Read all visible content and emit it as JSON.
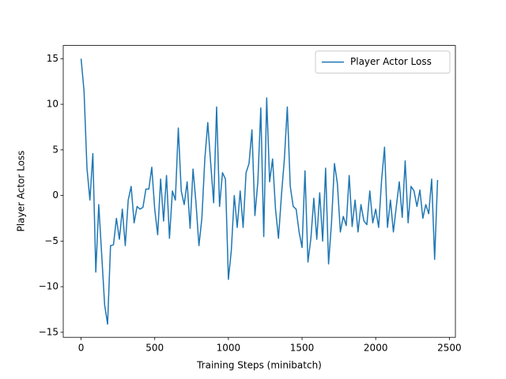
{
  "chart_data": {
    "type": "line",
    "xlabel": "Training Steps (minibatch)",
    "ylabel": "Player Actor Loss",
    "x": [
      0,
      20,
      40,
      60,
      80,
      100,
      120,
      140,
      160,
      180,
      200,
      220,
      240,
      260,
      280,
      300,
      320,
      340,
      360,
      380,
      400,
      420,
      440,
      460,
      480,
      500,
      520,
      540,
      560,
      580,
      600,
      620,
      640,
      660,
      680,
      700,
      720,
      740,
      760,
      780,
      800,
      820,
      840,
      860,
      880,
      900,
      920,
      940,
      960,
      980,
      1000,
      1020,
      1040,
      1060,
      1080,
      1100,
      1120,
      1140,
      1160,
      1180,
      1200,
      1220,
      1240,
      1260,
      1280,
      1300,
      1320,
      1340,
      1360,
      1380,
      1400,
      1420,
      1440,
      1460,
      1480,
      1500,
      1520,
      1540,
      1560,
      1580,
      1600,
      1620,
      1640,
      1660,
      1680,
      1700,
      1720,
      1740,
      1760,
      1780,
      1800,
      1820,
      1840,
      1860,
      1880,
      1900,
      1920,
      1940,
      1960,
      1980,
      2000,
      2020,
      2040,
      2060,
      2080,
      2100,
      2120,
      2140,
      2160,
      2180,
      2200,
      2220,
      2240,
      2260,
      2280,
      2300,
      2320,
      2340,
      2360,
      2380,
      2400,
      2420
    ],
    "series": [
      {
        "name": "Player Actor Loss",
        "color": "#1f77b4",
        "values": [
          15,
          11.5,
          3,
          -0.5,
          4.6,
          -8.4,
          -1,
          -6.5,
          -12,
          -14.1,
          -5.5,
          -5.4,
          -2.5,
          -4.8,
          -1.5,
          -5.5,
          -0.5,
          1,
          -3,
          -1.2,
          -1.5,
          -1.3,
          0.7,
          0.7,
          3.1,
          -1.5,
          -4.3,
          1.8,
          -2.8,
          2.2,
          -4.7,
          0.5,
          -0.5,
          7.4,
          0.5,
          -1,
          1.5,
          -3.6,
          2.9,
          -0.8,
          -5.5,
          -2.5,
          4,
          8,
          3.5,
          -0.8,
          9.7,
          -1.2,
          2.5,
          1.8,
          -9.2,
          -6,
          0,
          -3.5,
          0.5,
          -3.5,
          2.5,
          3.5,
          7.2,
          -2.2,
          1.5,
          9.6,
          -4.5,
          10.7,
          1.5,
          4,
          -1.5,
          -4.7,
          0,
          4,
          9.7,
          1,
          -1.2,
          -1.5,
          -4,
          -5.7,
          2.7,
          -7.3,
          -4.7,
          -0.3,
          -4.8,
          0.3,
          -5,
          3,
          -7.5,
          -3,
          3.5,
          1.3,
          -4,
          -2.3,
          -3.3,
          2.2,
          -3.4,
          -0.5,
          -4,
          -1,
          -2.8,
          -3.2,
          0.5,
          -3,
          -1.5,
          -3.5,
          1.7,
          5.3,
          -3.5,
          -0.5,
          -4,
          -1.2,
          1.5,
          -2.4,
          3.8,
          -3,
          1,
          0.5,
          -1.2,
          0.6,
          -2.5,
          -1,
          -2,
          1.8,
          -7,
          1.7
        ]
      }
    ],
    "xlim": [
      -121,
      2541
    ],
    "ylim": [
      -15.55,
      16.45
    ],
    "xticks": [
      0,
      500,
      1000,
      1500,
      2000,
      2500
    ],
    "yticks": [
      {
        "value": -15,
        "label": "−15"
      },
      {
        "value": -10,
        "label": "−10"
      },
      {
        "value": -5,
        "label": "−5"
      },
      0,
      5,
      10,
      15
    ],
    "legend": "upper right"
  }
}
